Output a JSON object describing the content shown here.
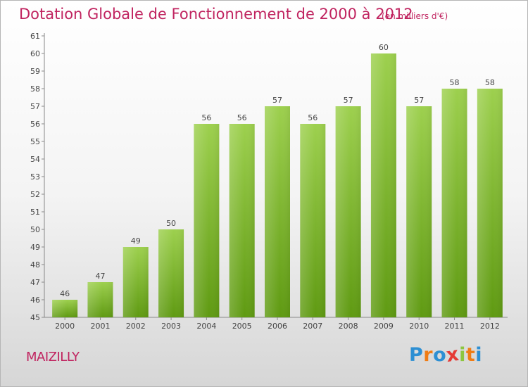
{
  "title": "Dotation Globale de Fonctionnement de 2000 à 2012",
  "unit_label": "(en milliers d'€)",
  "commune": "MAIZILLY",
  "logo": {
    "text": "Proxiti",
    "letters": [
      "P",
      "r",
      "o",
      "x",
      "i",
      "t",
      "i"
    ],
    "colors": [
      "#2d8fd3",
      "#f07c14",
      "#2d8fd3",
      "#e53935",
      "#8dc63f",
      "#f07c14",
      "#2d8fd3"
    ]
  },
  "colors": {
    "bar_top": "#9dd04e",
    "bar_bottom": "#5f9a12",
    "title": "#c0235f"
  },
  "chart_data": {
    "type": "bar",
    "title": "Dotation Globale de Fonctionnement de 2000 à 2012",
    "subtitle": "(en milliers d'€)",
    "categories": [
      "2000",
      "2001",
      "2002",
      "2003",
      "2004",
      "2005",
      "2006",
      "2007",
      "2008",
      "2009",
      "2010",
      "2011",
      "2012"
    ],
    "values": [
      46,
      47,
      49,
      50,
      56,
      56,
      57,
      56,
      57,
      60,
      57,
      58,
      58
    ],
    "ylim": [
      45,
      61
    ],
    "yticks": [
      45,
      46,
      47,
      48,
      49,
      50,
      51,
      52,
      53,
      54,
      55,
      56,
      57,
      58,
      59,
      60,
      61
    ],
    "grid": false,
    "legend": "none"
  }
}
